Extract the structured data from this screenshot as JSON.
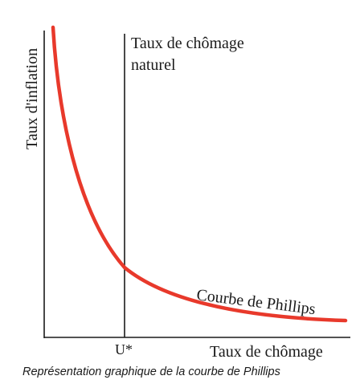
{
  "diagram": {
    "y_axis_label": "Taux d'inflation",
    "x_axis_label": "Taux de chômage",
    "natural_rate_label_line1": "Taux de chômage",
    "natural_rate_label_line2": "naturel",
    "u_star_label": "U*",
    "curve_label": "Courbe de Phillips",
    "curve_color": "#e8392b",
    "axis_color": "#1a1a1a"
  },
  "caption": "Représentation graphique de la courbe de Phillips"
}
